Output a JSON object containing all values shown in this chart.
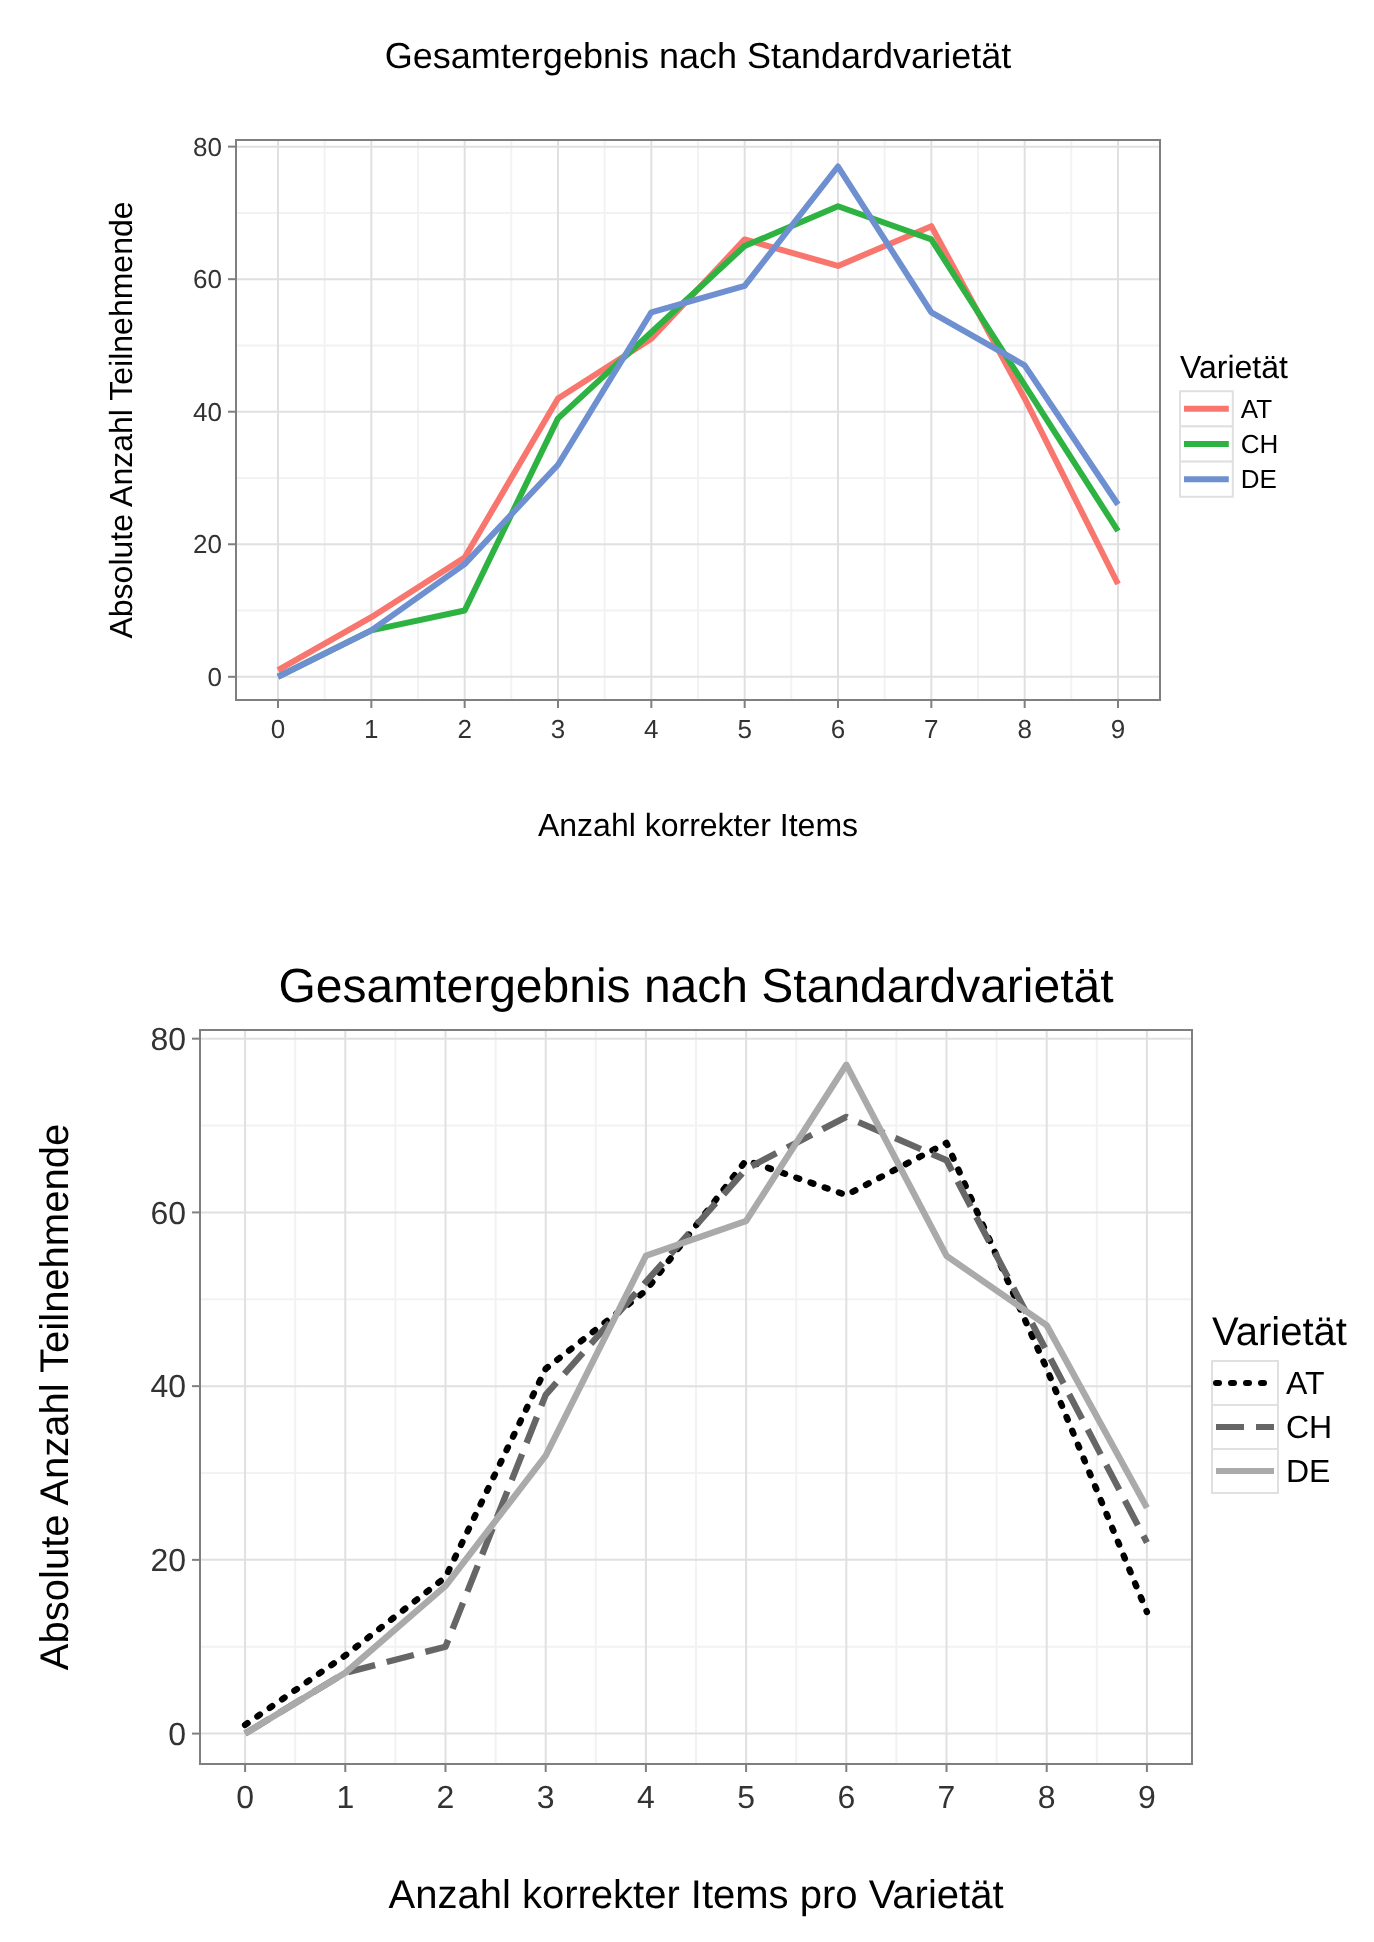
{
  "chart_data": [
    {
      "type": "line",
      "title": "Gesamtergebnis nach Standardvarietät",
      "xlabel": "Anzahl korrekter Items",
      "ylabel": "Absolute Anzahl Teilnehmende",
      "legend_title": "Varietät",
      "legend": "right",
      "grid": true,
      "x": [
        0,
        1,
        2,
        3,
        4,
        5,
        6,
        7,
        8,
        9
      ],
      "xlim": [
        -0.45,
        9.45
      ],
      "xticks": [
        0,
        1,
        2,
        3,
        4,
        5,
        6,
        7,
        8,
        9
      ],
      "ylim": [
        -3.5,
        81
      ],
      "yticks": [
        0,
        20,
        40,
        60,
        80
      ],
      "series": [
        {
          "name": "AT",
          "color": "#f8766d",
          "values": [
            1,
            9,
            18,
            42,
            51,
            66,
            62,
            68,
            42,
            14
          ]
        },
        {
          "name": "CH",
          "color": "#2eb343",
          "values": [
            0,
            7,
            10,
            39,
            52,
            65,
            71,
            66,
            44,
            22
          ]
        },
        {
          "name": "DE",
          "color": "#6e90d0",
          "values": [
            0,
            7,
            17,
            32,
            55,
            59,
            77,
            55,
            47,
            26
          ]
        }
      ]
    },
    {
      "type": "line",
      "title": "Gesamtergebnis nach Standardvarietät",
      "xlabel": "Anzahl korrekter Items pro Varietät",
      "ylabel": "Absolute Anzahl Teilnehmende",
      "legend_title": "Varietät",
      "legend": "right",
      "grid": true,
      "x": [
        0,
        1,
        2,
        3,
        4,
        5,
        6,
        7,
        8,
        9
      ],
      "xlim": [
        -0.45,
        9.45
      ],
      "xticks": [
        0,
        1,
        2,
        3,
        4,
        5,
        6,
        7,
        8,
        9
      ],
      "ylim": [
        -3.5,
        81
      ],
      "yticks": [
        0,
        20,
        40,
        60,
        80
      ],
      "series": [
        {
          "name": "AT",
          "color": "#000000",
          "line_style": "dotted",
          "values": [
            1,
            9,
            18,
            42,
            51,
            66,
            62,
            68,
            42,
            14
          ]
        },
        {
          "name": "CH",
          "color": "#666666",
          "line_style": "dashed",
          "values": [
            0,
            7,
            10,
            39,
            52,
            65,
            71,
            66,
            44,
            22
          ]
        },
        {
          "name": "DE",
          "color": "#aaaaaa",
          "line_style": "solid",
          "values": [
            0,
            7,
            17,
            32,
            55,
            59,
            77,
            55,
            47,
            26
          ]
        }
      ]
    }
  ]
}
